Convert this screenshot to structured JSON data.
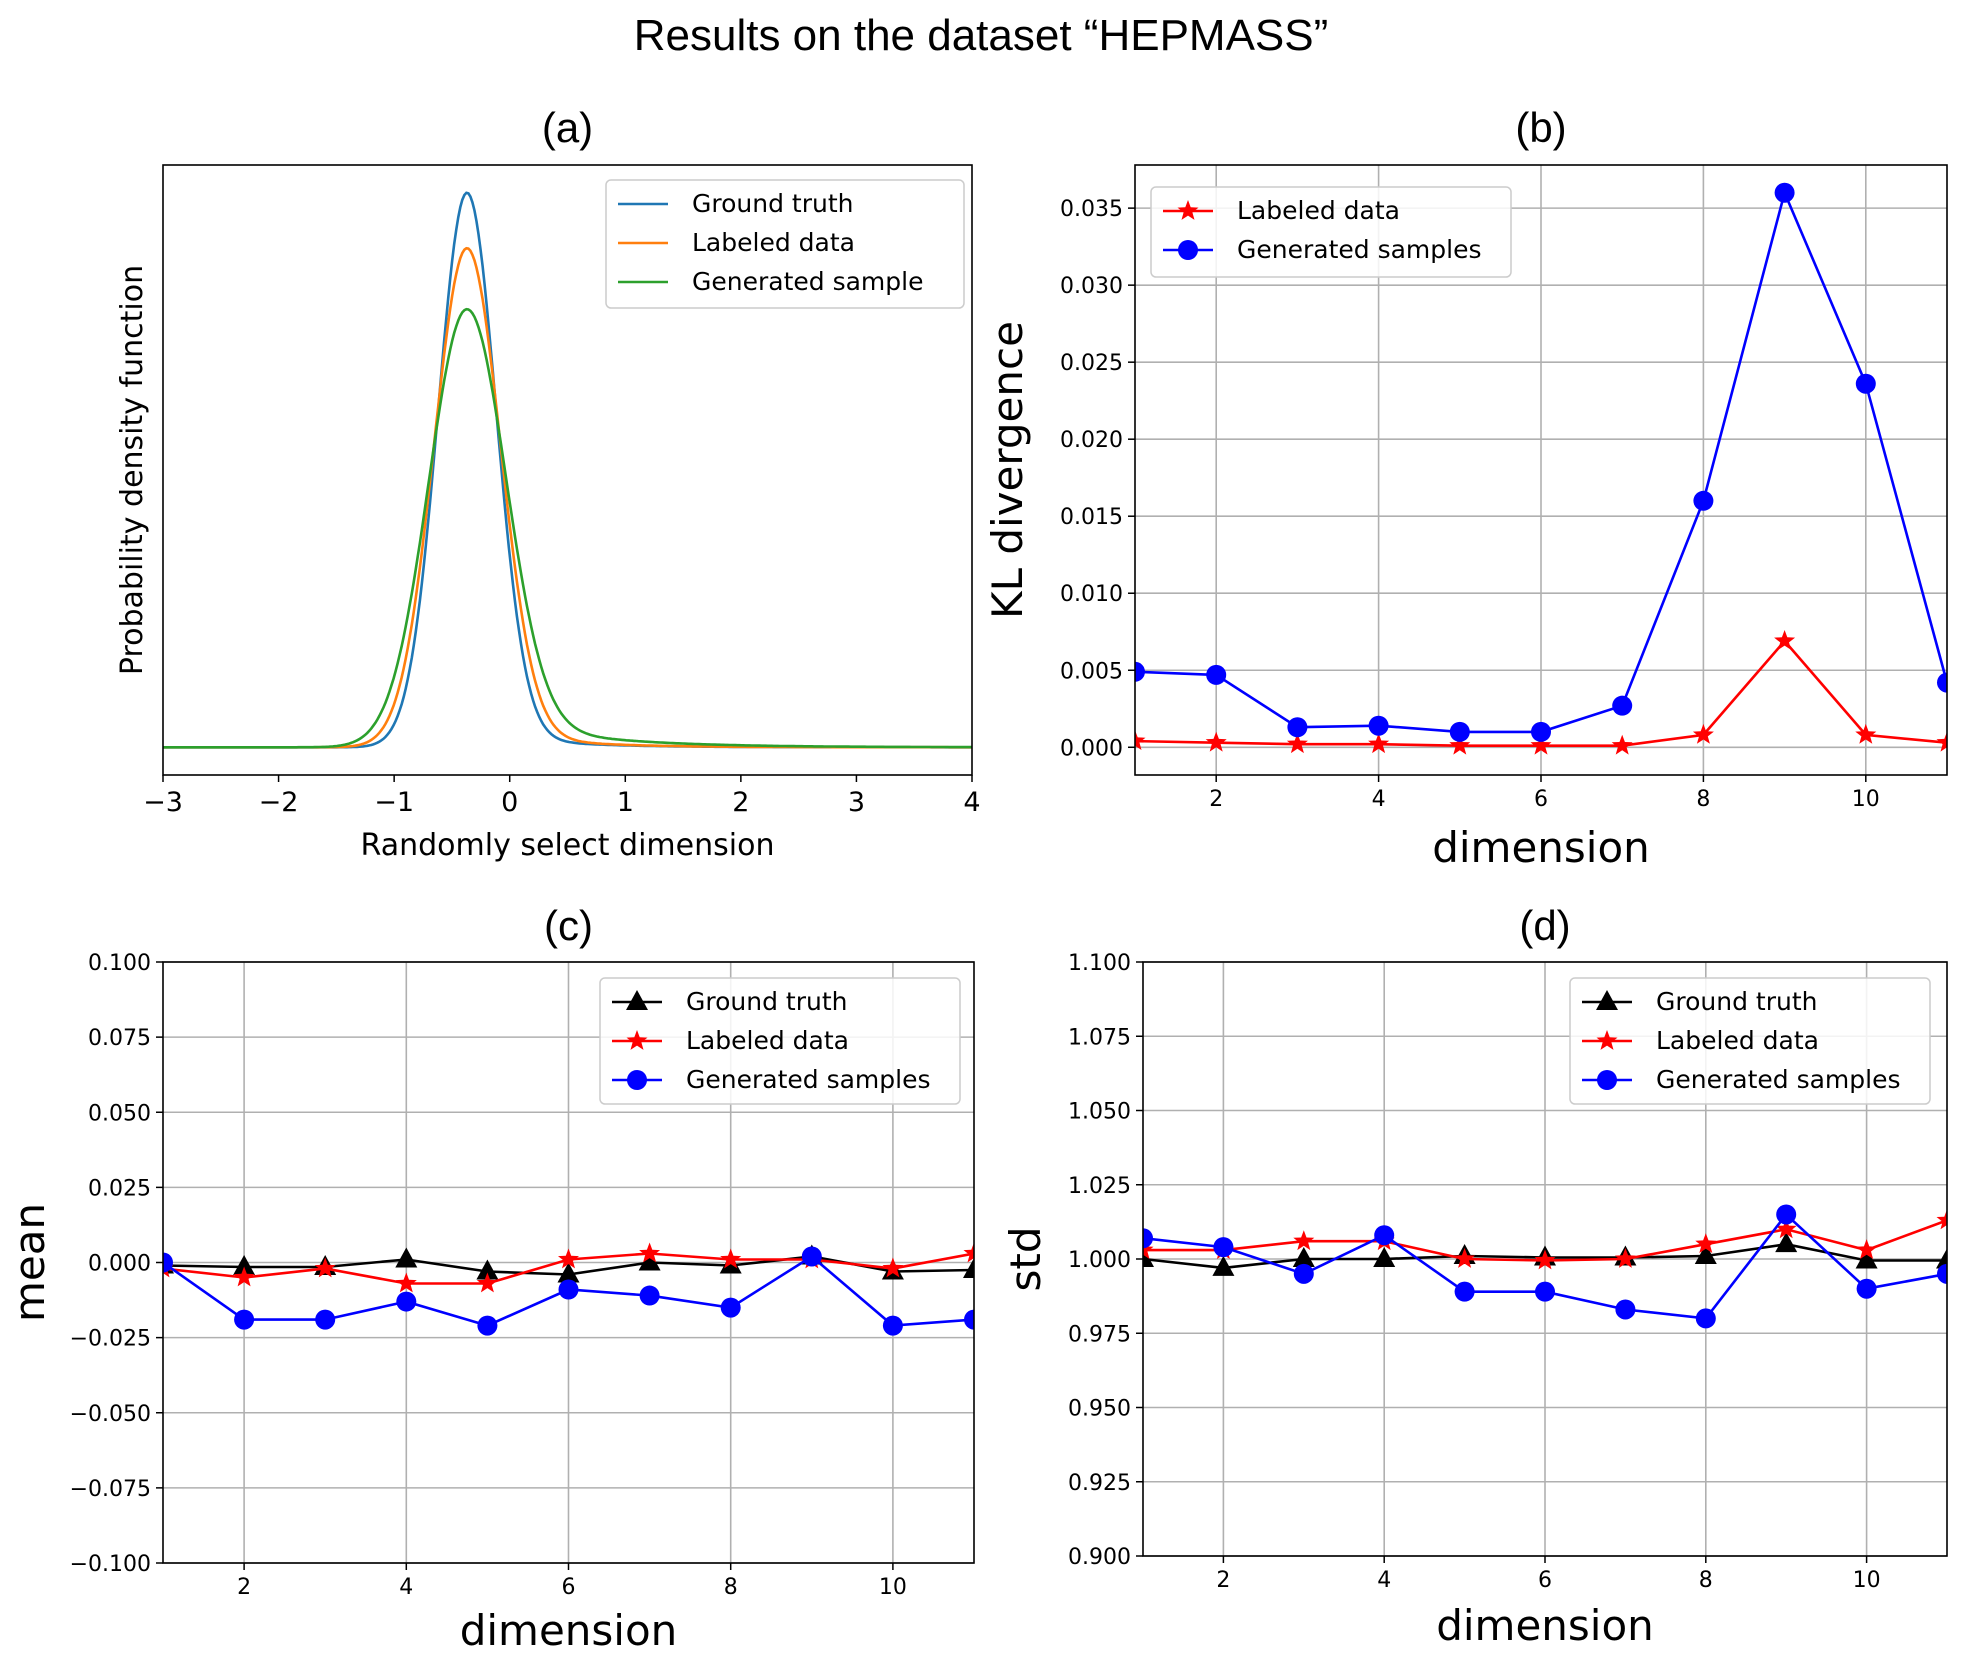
{
  "figure": {
    "title": "Results on the dataset “HEPMASS”"
  },
  "colors": {
    "ground_truth_pdf": "#1f77b4",
    "labeled_pdf": "#ff7f0e",
    "generated_pdf": "#2ca02c",
    "black": "#000000",
    "red": "#ff0000",
    "blue": "#0000ff"
  },
  "chart_data": [
    {
      "id": "a",
      "type": "line",
      "panel_label": "(a)",
      "xlabel": "Randomly select dimension",
      "ylabel": "Probability density function",
      "xlim": [
        -3,
        4
      ],
      "xticks": [
        -3,
        -2,
        -1,
        0,
        1,
        2,
        3,
        4
      ],
      "xtick_labels": [
        "−3",
        "−2",
        "−1",
        "0",
        "1",
        "2",
        "3",
        "4"
      ],
      "ylim": [
        -0.05,
        1.05
      ],
      "yticks": [],
      "grid": false,
      "legend": "top-right",
      "series": [
        {
          "name": "Ground truth",
          "color": "#1f77b4",
          "kind": "pdf",
          "params": {
            "mu": -0.37,
            "sigma": 0.25,
            "peak": 1.0,
            "tail_amp": 0.033,
            "tail_decay": 0.6
          }
        },
        {
          "name": "Labeled data",
          "color": "#ff7f0e",
          "kind": "pdf",
          "params": {
            "mu": -0.37,
            "sigma": 0.285,
            "peak": 0.9,
            "tail_amp": 0.043,
            "tail_decay": 0.6
          }
        },
        {
          "name": "Generated sample",
          "color": "#2ca02c",
          "kind": "pdf",
          "params": {
            "mu": -0.37,
            "sigma": 0.33,
            "peak": 0.79,
            "tail_amp": 0.07,
            "tail_decay": 0.8
          }
        }
      ]
    },
    {
      "id": "b",
      "type": "line",
      "panel_label": "(b)",
      "xlabel": "dimension",
      "ylabel": "KL divergence",
      "xlim": [
        1,
        11
      ],
      "xticks": [
        2,
        4,
        6,
        8,
        10
      ],
      "xtick_labels": [
        "2",
        "4",
        "6",
        "8",
        "10"
      ],
      "ylim": [
        -0.0018,
        0.0378
      ],
      "yticks": [
        0.0,
        0.005,
        0.01,
        0.015,
        0.02,
        0.025,
        0.03,
        0.035
      ],
      "ytick_labels": [
        "0.000",
        "0.005",
        "0.010",
        "0.015",
        "0.020",
        "0.025",
        "0.030",
        "0.035"
      ],
      "grid": true,
      "legend": "top-left",
      "x": [
        1,
        2,
        3,
        4,
        5,
        6,
        7,
        8,
        9,
        10,
        11
      ],
      "series": [
        {
          "name": "Labeled data",
          "color": "#ff0000",
          "marker": "star",
          "values": [
            0.0004,
            0.0003,
            0.0002,
            0.0002,
            0.0001,
            0.0001,
            0.0001,
            0.0008,
            0.0069,
            0.0008,
            0.0003
          ]
        },
        {
          "name": "Generated samples",
          "color": "#0000ff",
          "marker": "circle",
          "values": [
            0.0049,
            0.0047,
            0.0013,
            0.0014,
            0.001,
            0.001,
            0.0027,
            0.016,
            0.036,
            0.0236,
            0.0042
          ]
        }
      ]
    },
    {
      "id": "c",
      "type": "line",
      "panel_label": "(c)",
      "xlabel": "dimension",
      "ylabel": "mean",
      "xlim": [
        1,
        11
      ],
      "xticks": [
        2,
        4,
        6,
        8,
        10
      ],
      "xtick_labels": [
        "2",
        "4",
        "6",
        "8",
        "10"
      ],
      "ylim": [
        -0.1,
        0.1
      ],
      "yticks": [
        -0.1,
        -0.075,
        -0.05,
        -0.025,
        0.0,
        0.025,
        0.05,
        0.075,
        0.1
      ],
      "ytick_labels": [
        "−0.100",
        "−0.075",
        "−0.050",
        "−0.025",
        "0.000",
        "0.025",
        "0.050",
        "0.075",
        "0.100"
      ],
      "grid": true,
      "legend": "top-right",
      "x": [
        1,
        2,
        3,
        4,
        5,
        6,
        7,
        8,
        9,
        10,
        11
      ],
      "series": [
        {
          "name": "Ground truth",
          "color": "#000000",
          "marker": "triangle",
          "values": [
            -0.001,
            -0.0015,
            -0.0015,
            0.001,
            -0.003,
            -0.004,
            0.0,
            -0.001,
            0.002,
            -0.003,
            -0.0025
          ]
        },
        {
          "name": "Labeled data",
          "color": "#ff0000",
          "marker": "star",
          "values": [
            -0.002,
            -0.005,
            -0.002,
            -0.007,
            -0.007,
            0.001,
            0.003,
            0.001,
            0.001,
            -0.002,
            0.003
          ]
        },
        {
          "name": "Generated samples",
          "color": "#0000ff",
          "marker": "circle",
          "values": [
            0.0,
            -0.019,
            -0.019,
            -0.013,
            -0.021,
            -0.009,
            -0.011,
            -0.015,
            0.002,
            -0.021,
            -0.019
          ]
        }
      ]
    },
    {
      "id": "d",
      "type": "line",
      "panel_label": "(d)",
      "xlabel": "dimension",
      "ylabel": "std",
      "xlim": [
        1,
        11
      ],
      "xticks": [
        2,
        4,
        6,
        8,
        10
      ],
      "xtick_labels": [
        "2",
        "4",
        "6",
        "8",
        "10"
      ],
      "ylim": [
        0.9,
        1.1
      ],
      "yticks": [
        0.9,
        0.925,
        0.95,
        0.975,
        1.0,
        1.025,
        1.05,
        1.075,
        1.1
      ],
      "ytick_labels": [
        "0.900",
        "0.925",
        "0.950",
        "0.975",
        "1.000",
        "1.025",
        "1.050",
        "1.075",
        "1.100"
      ],
      "grid": true,
      "legend": "top-right",
      "x": [
        1,
        2,
        3,
        4,
        5,
        6,
        7,
        8,
        9,
        10,
        11
      ],
      "series": [
        {
          "name": "Ground truth",
          "color": "#000000",
          "marker": "triangle",
          "values": [
            1.0,
            0.997,
            1.0,
            1.0,
            1.001,
            1.0005,
            1.0005,
            1.001,
            1.005,
            0.9995,
            0.9995
          ]
        },
        {
          "name": "Labeled data",
          "color": "#ff0000",
          "marker": "star",
          "values": [
            1.003,
            1.003,
            1.006,
            1.006,
            1.0,
            0.9995,
            1.0,
            1.005,
            1.01,
            1.003,
            1.013
          ]
        },
        {
          "name": "Generated samples",
          "color": "#0000ff",
          "marker": "circle",
          "values": [
            1.007,
            1.004,
            0.995,
            1.008,
            0.989,
            0.989,
            0.983,
            0.98,
            1.015,
            0.99,
            0.995
          ]
        }
      ]
    }
  ]
}
